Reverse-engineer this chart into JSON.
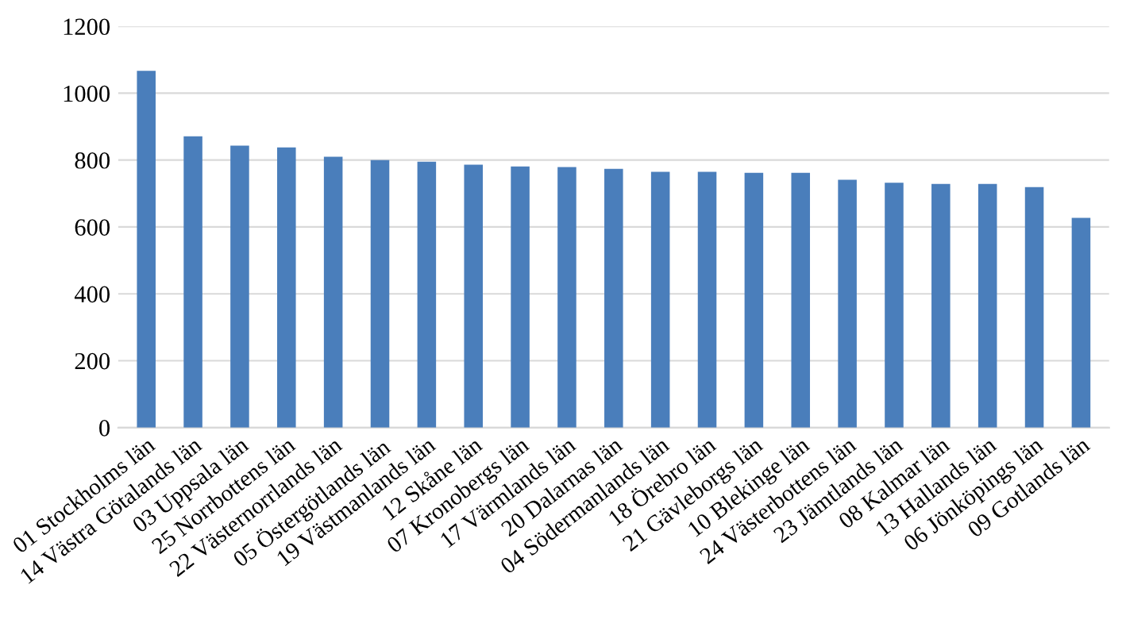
{
  "chart_data": {
    "type": "bar",
    "categories": [
      "01 Stockholms län",
      "14 Västra Götalands län",
      "03 Uppsala län",
      "25 Norrbottens län",
      "22 Västernorrlands län",
      "05 Östergötlands län",
      "19 Västmanlands län",
      "12 Skåne län",
      "07 Kronobergs län",
      "17 Värmlands län",
      "20 Dalarnas län",
      "04 Södermanlands län",
      "18 Örebro län",
      "21 Gävleborgs län",
      "10 Blekinge län",
      "24 Västerbottens län",
      "23 Jämtlands län",
      "08 Kalmar län",
      "13 Hallands län",
      "06 Jönköpings län",
      "09 Gotlands län"
    ],
    "values": [
      1067,
      871,
      843,
      838,
      810,
      800,
      795,
      786,
      781,
      779,
      774,
      765,
      765,
      762,
      762,
      741,
      732,
      729,
      729,
      719,
      627
    ],
    "color": "#4a7ebb",
    "ylim": [
      0,
      1200
    ],
    "yticks": [
      0,
      200,
      400,
      600,
      800,
      1000,
      1200
    ],
    "grid": "y"
  }
}
